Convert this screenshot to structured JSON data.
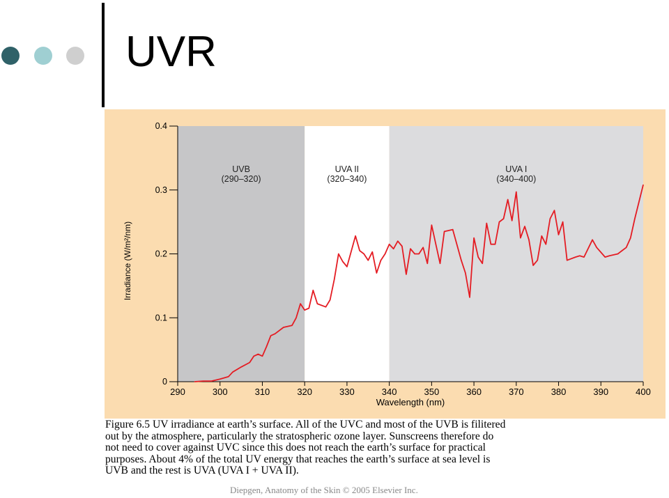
{
  "slide": {
    "title": "UVR",
    "dot_colors": [
      "#2f6168",
      "#9fcfd2",
      "#cfcfcf"
    ]
  },
  "caption": {
    "lines": [
      "Figure 6.5 UV irradiance at earth’s surface. All of the UVC and most of the UVB is filitered",
      "out by the atmosphere, particularly the stratospheric ozone layer. Sunscreens therefore do",
      "not need to cover against UVC since this does not reach the earth’s surface for practical",
      "purposes. About 4% of the total UV energy that reaches the earth’s surface at sea level is",
      "UVB and the rest is UVA (UVA I + UVA II)."
    ],
    "credit": "Diepgen, Anatomy of the Skin © 2005 Elsevier Inc."
  },
  "chart_data": {
    "type": "line",
    "xlabel": "Wavelength (nm)",
    "ylabel": "Irradiance (W/m²/nm)",
    "xlim": [
      290,
      400
    ],
    "ylim": [
      0,
      0.4
    ],
    "x_ticks": [
      290,
      300,
      310,
      320,
      330,
      340,
      350,
      360,
      370,
      380,
      390,
      400
    ],
    "y_ticks": [
      0,
      0.1,
      0.2,
      0.3,
      0.4
    ],
    "y_tick_labels": [
      "0",
      "0.1",
      "0.2",
      "0.3",
      "0.4"
    ],
    "regions": [
      {
        "name": "UVB",
        "range_label": "(290–320)",
        "x_start": 290,
        "x_end": 320,
        "color": "#c6c6c8"
      },
      {
        "name": "UVA II",
        "range_label": "(320–340)",
        "x_start": 320,
        "x_end": 340,
        "color": "#ffffff"
      },
      {
        "name": "UVA I",
        "range_label": "(340–400)",
        "x_start": 340,
        "x_end": 400,
        "color": "#dcdcde"
      }
    ],
    "line_color": "#e41c23",
    "series": [
      {
        "x": [
          294,
          296,
          298,
          300,
          302,
          303,
          305,
          307,
          308,
          309,
          310,
          311,
          312,
          313,
          315,
          317,
          318,
          319,
          320,
          321,
          322,
          323,
          325,
          326,
          327,
          328,
          329,
          330,
          332,
          333,
          334,
          335,
          336,
          337,
          338,
          339,
          340,
          341,
          342,
          343,
          344,
          345,
          346,
          347,
          348,
          349,
          350,
          351,
          352,
          353,
          355,
          357,
          358,
          359,
          360,
          361,
          362,
          363,
          364,
          365,
          366,
          367,
          368,
          369,
          370,
          371,
          372,
          373,
          374,
          375,
          376,
          377,
          378,
          379,
          380,
          381,
          382,
          384,
          385,
          386,
          388,
          389,
          391,
          392,
          394,
          395,
          396,
          397,
          398,
          400
        ],
        "y": [
          0.0,
          0.001,
          0.001,
          0.004,
          0.008,
          0.015,
          0.023,
          0.03,
          0.04,
          0.043,
          0.04,
          0.055,
          0.072,
          0.075,
          0.085,
          0.088,
          0.1,
          0.122,
          0.112,
          0.115,
          0.143,
          0.122,
          0.117,
          0.128,
          0.16,
          0.2,
          0.188,
          0.18,
          0.228,
          0.205,
          0.2,
          0.19,
          0.203,
          0.17,
          0.19,
          0.2,
          0.215,
          0.208,
          0.22,
          0.212,
          0.168,
          0.208,
          0.2,
          0.2,
          0.21,
          0.185,
          0.245,
          0.215,
          0.185,
          0.235,
          0.238,
          0.19,
          0.17,
          0.132,
          0.225,
          0.195,
          0.185,
          0.248,
          0.215,
          0.215,
          0.25,
          0.255,
          0.285,
          0.252,
          0.297,
          0.225,
          0.243,
          0.222,
          0.182,
          0.19,
          0.228,
          0.215,
          0.255,
          0.268,
          0.23,
          0.25,
          0.19,
          0.195,
          0.197,
          0.195,
          0.222,
          0.21,
          0.195,
          0.197,
          0.2,
          0.205,
          0.21,
          0.225,
          0.255,
          0.308
        ]
      }
    ],
    "grid": false,
    "legend": "none"
  }
}
